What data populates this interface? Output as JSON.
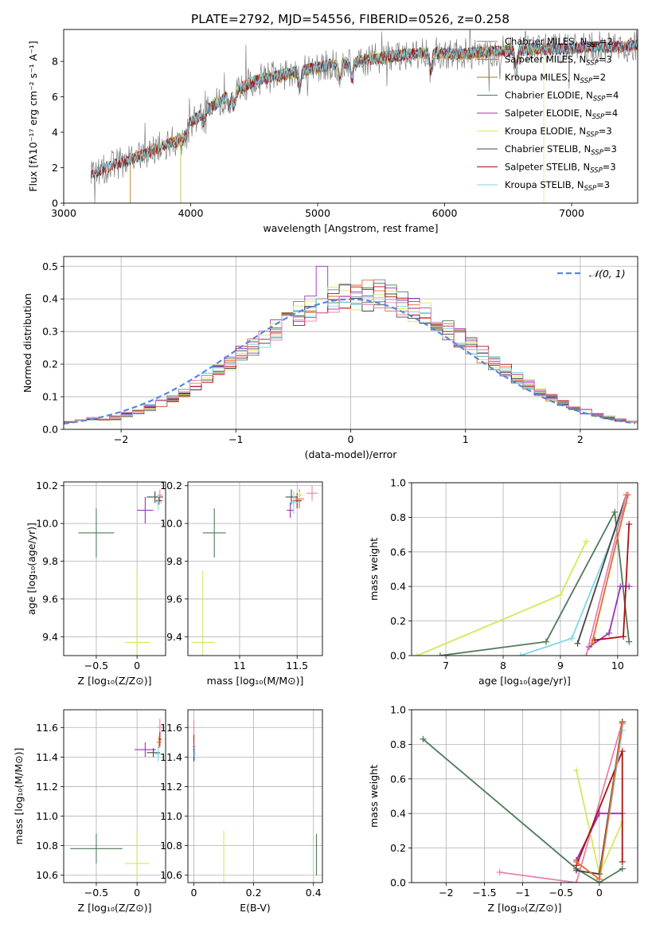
{
  "figure": {
    "title": "PLATE=2792, MJD=54556, FIBERID=0526, z=0.258",
    "colors": {
      "chabrier_miles": "#7f7f7f",
      "salpeter_miles": "#e66a2c",
      "kroupa_miles": "#b07a1a",
      "chabrier_elodie": "#4e7a58",
      "salpeter_elodie": "#9933bb",
      "kroupa_elodie": "#d2ea5a",
      "chabrier_stelib": "#444444",
      "salpeter_stelib": "#aa1111",
      "kroupa_stelib": "#7fd7e6",
      "normal_curve": "#5588dd",
      "extra_pink": "#e880b0",
      "grid": "#b0b0b0"
    }
  },
  "chart_data": [
    {
      "id": "spectrum",
      "type": "line",
      "xlabel": "wavelength [Angstrom, rest frame]",
      "ylabel": "Flux [fλ10⁻¹⁷ erg cm⁻² s⁻¹ A⁻¹]",
      "xlim": [
        3000,
        7520
      ],
      "ylim": [
        0,
        9.8
      ],
      "xticks": [
        3000,
        4000,
        5000,
        6000,
        7000
      ],
      "yticks": [
        0,
        2,
        4,
        6,
        8
      ],
      "grid": false,
      "legend_position": "top-right",
      "continuum": [
        [
          3215,
          1.5
        ],
        [
          3300,
          1.9
        ],
        [
          3400,
          2.2
        ],
        [
          3500,
          2.4
        ],
        [
          3650,
          2.8
        ],
        [
          3800,
          3.3
        ],
        [
          3900,
          3.5
        ],
        [
          4000,
          4.6
        ],
        [
          4100,
          5.1
        ],
        [
          4300,
          6.1
        ],
        [
          4500,
          6.9
        ],
        [
          4700,
          7.2
        ],
        [
          4900,
          7.5
        ],
        [
          5100,
          7.8
        ],
        [
          5300,
          8.0
        ],
        [
          5500,
          8.2
        ],
        [
          5700,
          8.4
        ],
        [
          5900,
          8.5
        ],
        [
          6100,
          8.4
        ],
        [
          6300,
          8.5
        ],
        [
          6500,
          8.6
        ],
        [
          6700,
          8.7
        ],
        [
          6900,
          8.7
        ],
        [
          7100,
          8.8
        ],
        [
          7300,
          8.8
        ],
        [
          7520,
          8.9
        ]
      ],
      "series": [
        {
          "name": "Chabrier MILES, N_SSP=2",
          "label_main": "Chabrier MILES, N",
          "label_sub": "SSP",
          "label_tail": "=2",
          "color": "#7f7f7f"
        },
        {
          "name": "Salpeter MILES, N_SSP=3",
          "label_main": "Salpeter MILES, N",
          "label_sub": "SSP",
          "label_tail": "=3",
          "color": "#e66a2c"
        },
        {
          "name": "Kroupa MILES, N_SSP=2",
          "label_main": "Kroupa MILES, N",
          "label_sub": "SSP",
          "label_tail": "=2",
          "color": "#b07a1a"
        },
        {
          "name": "Chabrier ELODIE, N_SSP=4",
          "label_main": "Chabrier ELODIE, N",
          "label_sub": "SSP",
          "label_tail": "=4",
          "color": "#4e7a58"
        },
        {
          "name": "Salpeter ELODIE, N_SSP=4",
          "label_main": "Salpeter ELODIE, N",
          "label_sub": "SSP",
          "label_tail": "=4",
          "color": "#9933bb"
        },
        {
          "name": "Kroupa ELODIE, N_SSP=3",
          "label_main": "Kroupa ELODIE, N",
          "label_sub": "SSP",
          "label_tail": "=3",
          "color": "#d2ea5a"
        },
        {
          "name": "Chabrier STELIB, N_SSP=3",
          "label_main": "Chabrier STELIB, N",
          "label_sub": "SSP",
          "label_tail": "=3",
          "color": "#444444"
        },
        {
          "name": "Salpeter STELIB, N_SSP=3",
          "label_main": "Salpeter STELIB, N",
          "label_sub": "SSP",
          "label_tail": "=3",
          "color": "#aa1111"
        },
        {
          "name": "Kroupa STELIB, N_SSP=3",
          "label_main": "Kroupa STELIB, N",
          "label_sub": "SSP",
          "label_tail": "=3",
          "color": "#7fd7e6"
        }
      ]
    },
    {
      "id": "residuals",
      "type": "bar",
      "xlabel": "(data-model)/error",
      "ylabel": "Normed distribution",
      "xlim": [
        -2.5,
        2.5
      ],
      "ylim": [
        0,
        0.53
      ],
      "xticks": [
        -2,
        -1,
        0,
        1,
        2
      ],
      "yticks": [
        0.0,
        0.1,
        0.2,
        0.3,
        0.4,
        0.5
      ],
      "grid": true,
      "legend": "𝒩(0, 1)",
      "legend_position": "top-right",
      "bin_width": 0.1,
      "gaussian": {
        "mean": 0,
        "sigma": 1,
        "color": "#5588dd"
      }
    },
    {
      "id": "age_vs_Z",
      "type": "scatter",
      "xlabel": "Z [log₁₀(Z/Z⊙)]",
      "ylabel": "age  [log₁₀(age/yr)]",
      "xlim": [
        -0.9,
        0.35
      ],
      "ylim": [
        9.3,
        10.22
      ],
      "xticks": [
        -0.5,
        0.0
      ],
      "yticks": [
        9.4,
        9.6,
        9.8,
        10.0,
        10.2
      ],
      "grid": true,
      "points": [
        {
          "x": -0.5,
          "y": 9.95,
          "xerr": 0.22,
          "yerr": 0.13,
          "color": "#4e7a58"
        },
        {
          "x": 0.0,
          "y": 9.37,
          "xerr": 0.15,
          "yerr": 0.38,
          "color": "#d2ea5a"
        },
        {
          "x": 0.1,
          "y": 10.07,
          "xerr": 0.1,
          "yerr": 0.07,
          "color": "#9933bb"
        },
        {
          "x": 0.22,
          "y": 10.14,
          "xerr": 0.1,
          "yerr": 0.03,
          "color": "#444444"
        },
        {
          "x": 0.28,
          "y": 10.15,
          "xerr": 0.03,
          "yerr": 0.03,
          "color": "#e880b0"
        },
        {
          "x": 0.27,
          "y": 10.12,
          "xerr": 0.04,
          "yerr": 0.02,
          "color": "#aa1111"
        },
        {
          "x": 0.26,
          "y": 10.11,
          "xerr": 0.04,
          "yerr": 0.04,
          "color": "#7fd7e6"
        }
      ]
    },
    {
      "id": "age_vs_mass",
      "type": "scatter",
      "xlabel": "mass [log₁₀(M/M⊙)]",
      "ylabel": "",
      "xlim": [
        10.55,
        11.72
      ],
      "ylim": [
        9.3,
        10.22
      ],
      "xticks": [
        11.0,
        11.5
      ],
      "yticks": [
        9.4,
        9.6,
        9.8,
        10.0,
        10.2
      ],
      "grid": true,
      "points": [
        {
          "x": 10.78,
          "y": 9.95,
          "xerr": 0.1,
          "yerr": 0.13,
          "color": "#4e7a58"
        },
        {
          "x": 10.68,
          "y": 9.37,
          "xerr": 0.1,
          "yerr": 0.38,
          "color": "#d2ea5a"
        },
        {
          "x": 11.45,
          "y": 10.14,
          "xerr": 0.05,
          "yerr": 0.04,
          "color": "#444444"
        },
        {
          "x": 11.44,
          "y": 10.07,
          "xerr": 0.03,
          "yerr": 0.04,
          "color": "#9933bb"
        },
        {
          "x": 11.5,
          "y": 10.12,
          "xerr": 0.04,
          "yerr": 0.04,
          "color": "#aa1111"
        },
        {
          "x": 11.47,
          "y": 10.11,
          "xerr": 0.04,
          "yerr": 0.06,
          "color": "#7fd7e6"
        },
        {
          "x": 11.52,
          "y": 10.13,
          "xerr": 0.04,
          "yerr": 0.05,
          "color": "#e66a2c"
        },
        {
          "x": 11.63,
          "y": 10.16,
          "xerr": 0.05,
          "yerr": 0.04,
          "color": "#e880b0"
        },
        {
          "x": 11.52,
          "y": 10.15,
          "xerr": 0.03,
          "yerr": 0.02,
          "color": "#d2ea5a"
        }
      ]
    },
    {
      "id": "massweight_vs_age",
      "type": "line",
      "xlabel": "age  [log₁₀(age/yr)]",
      "ylabel": "mass weight",
      "xlim": [
        6.4,
        10.35
      ],
      "ylim": [
        0,
        1.0
      ],
      "xticks": [
        7,
        8,
        9,
        10
      ],
      "yticks": [
        0.0,
        0.2,
        0.4,
        0.6,
        0.8,
        1.0
      ],
      "grid": true,
      "series": [
        {
          "color": "#d2ea5a",
          "points": [
            [
              6.5,
              0.0
            ],
            [
              9.0,
              0.35
            ],
            [
              9.45,
              0.66
            ]
          ]
        },
        {
          "color": "#4e7a58",
          "points": [
            [
              6.9,
              0.0
            ],
            [
              8.75,
              0.08
            ],
            [
              9.95,
              0.83
            ],
            [
              10.2,
              0.08
            ]
          ]
        },
        {
          "color": "#7fd7e6",
          "points": [
            [
              8.3,
              0.0
            ],
            [
              9.2,
              0.1
            ],
            [
              10.15,
              0.88
            ]
          ]
        },
        {
          "color": "#444444",
          "points": [
            [
              9.3,
              0.07
            ],
            [
              10.15,
              0.93
            ]
          ]
        },
        {
          "color": "#9933bb",
          "points": [
            [
              9.5,
              0.05
            ],
            [
              9.85,
              0.13
            ],
            [
              10.05,
              0.4
            ],
            [
              10.2,
              0.4
            ]
          ]
        },
        {
          "color": "#aa1111",
          "points": [
            [
              9.6,
              0.09
            ],
            [
              10.1,
              0.11
            ],
            [
              10.2,
              0.76
            ]
          ]
        },
        {
          "color": "#e880b0",
          "points": [
            [
              9.45,
              0.0
            ],
            [
              10.15,
              0.93
            ]
          ]
        },
        {
          "color": "#e66a2c",
          "points": [
            [
              9.55,
              0.07
            ],
            [
              10.18,
              0.93
            ]
          ]
        }
      ]
    },
    {
      "id": "mass_vs_Z",
      "type": "scatter",
      "xlabel": "Z [log₁₀(Z/Z⊙)]",
      "ylabel": "mass [log₁₀(M/M⊙)]",
      "xlim": [
        -0.9,
        0.35
      ],
      "ylim": [
        10.55,
        11.72
      ],
      "xticks": [
        -0.5,
        0.0
      ],
      "yticks": [
        10.6,
        10.8,
        11.0,
        11.2,
        11.4,
        11.6
      ],
      "grid": true,
      "points": [
        {
          "x": -0.5,
          "y": 10.78,
          "xerr": 0.32,
          "yerr": 0.1,
          "color": "#4e7a58"
        },
        {
          "x": 0.0,
          "y": 10.68,
          "xerr": 0.15,
          "yerr": 0.22,
          "color": "#d2ea5a"
        },
        {
          "x": 0.1,
          "y": 11.45,
          "xerr": 0.13,
          "yerr": 0.05,
          "color": "#9933bb"
        },
        {
          "x": 0.2,
          "y": 11.43,
          "xerr": 0.08,
          "yerr": 0.03,
          "color": "#444444"
        },
        {
          "x": 0.28,
          "y": 11.6,
          "xerr": 0.03,
          "yerr": 0.06,
          "color": "#e880b0"
        },
        {
          "x": 0.28,
          "y": 11.52,
          "xerr": 0.02,
          "yerr": 0.05,
          "color": "#aa1111"
        },
        {
          "x": 0.27,
          "y": 11.5,
          "xerr": 0.03,
          "yerr": 0.04,
          "color": "#e66a2c"
        },
        {
          "x": 0.26,
          "y": 11.42,
          "xerr": 0.04,
          "yerr": 0.05,
          "color": "#7fd7e6"
        }
      ]
    },
    {
      "id": "mass_vs_EBV",
      "type": "scatter",
      "xlabel": "E(B-V)",
      "ylabel": "",
      "xlim": [
        -0.02,
        0.43
      ],
      "ylim": [
        10.55,
        11.72
      ],
      "xticks": [
        0.0,
        0.2,
        0.4
      ],
      "yticks": [
        10.6,
        10.8,
        11.0,
        11.2,
        11.4,
        11.6
      ],
      "grid": true,
      "points": [
        {
          "x": 0.0,
          "y": 11.47,
          "xerr": 0.003,
          "yerr": 0.1,
          "color": "#aa1111"
        },
        {
          "x": 0.0,
          "y": 11.45,
          "xerr": 0.003,
          "yerr": 0.05,
          "color": "#9933bb"
        },
        {
          "x": 0.003,
          "y": 11.42,
          "xerr": 0.003,
          "yerr": 0.04,
          "color": "#7fd7e6"
        },
        {
          "x": 0.0,
          "y": 11.6,
          "xerr": 0.002,
          "yerr": 0.05,
          "color": "#e880b0"
        },
        {
          "x": 0.1,
          "y": 10.7,
          "xerr": 0.0,
          "yerr": 0.2,
          "color": "#d2ea5a"
        },
        {
          "x": 0.41,
          "y": 10.74,
          "xerr": 0.0,
          "yerr": 0.14,
          "color": "#4e7a58"
        }
      ]
    },
    {
      "id": "massweight_vs_Z",
      "type": "line",
      "xlabel": "Z [log₁₀(Z/Z⊙)]",
      "ylabel": "mass weight",
      "xlim": [
        -2.45,
        0.5
      ],
      "ylim": [
        0,
        1.0
      ],
      "xticks": [
        -2.0,
        -1.5,
        -1.0,
        -0.5,
        0.0
      ],
      "yticks": [
        0.0,
        0.2,
        0.4,
        0.6,
        0.8,
        1.0
      ],
      "grid": true,
      "series": [
        {
          "color": "#4e7a58",
          "points": [
            [
              -2.3,
              0.83
            ],
            [
              -0.3,
              0.08
            ],
            [
              0.0,
              0.0
            ],
            [
              0.3,
              0.08
            ]
          ]
        },
        {
          "color": "#e880b0",
          "points": [
            [
              -1.3,
              0.06
            ],
            [
              -0.3,
              0.0
            ],
            [
              0.3,
              0.93
            ]
          ]
        },
        {
          "color": "#d2ea5a",
          "points": [
            [
              -0.3,
              0.65
            ],
            [
              0.0,
              0.05
            ],
            [
              0.3,
              0.35
            ]
          ]
        },
        {
          "color": "#9933bb",
          "points": [
            [
              -0.3,
              0.13
            ],
            [
              0.0,
              0.4
            ],
            [
              0.3,
              0.4
            ]
          ]
        },
        {
          "color": "#aa1111",
          "points": [
            [
              -0.3,
              0.1
            ],
            [
              0.3,
              0.76
            ],
            [
              0.3,
              0.12
            ]
          ]
        },
        {
          "color": "#444444",
          "points": [
            [
              -0.3,
              0.07
            ],
            [
              0.0,
              0.05
            ],
            [
              0.3,
              0.93
            ]
          ]
        },
        {
          "color": "#7fd7e6",
          "points": [
            [
              0.0,
              0.02
            ],
            [
              0.3,
              0.88
            ]
          ]
        },
        {
          "color": "#e66a2c",
          "points": [
            [
              -0.3,
              0.12
            ],
            [
              0.0,
              0.02
            ],
            [
              0.3,
              0.92
            ]
          ]
        }
      ]
    }
  ]
}
